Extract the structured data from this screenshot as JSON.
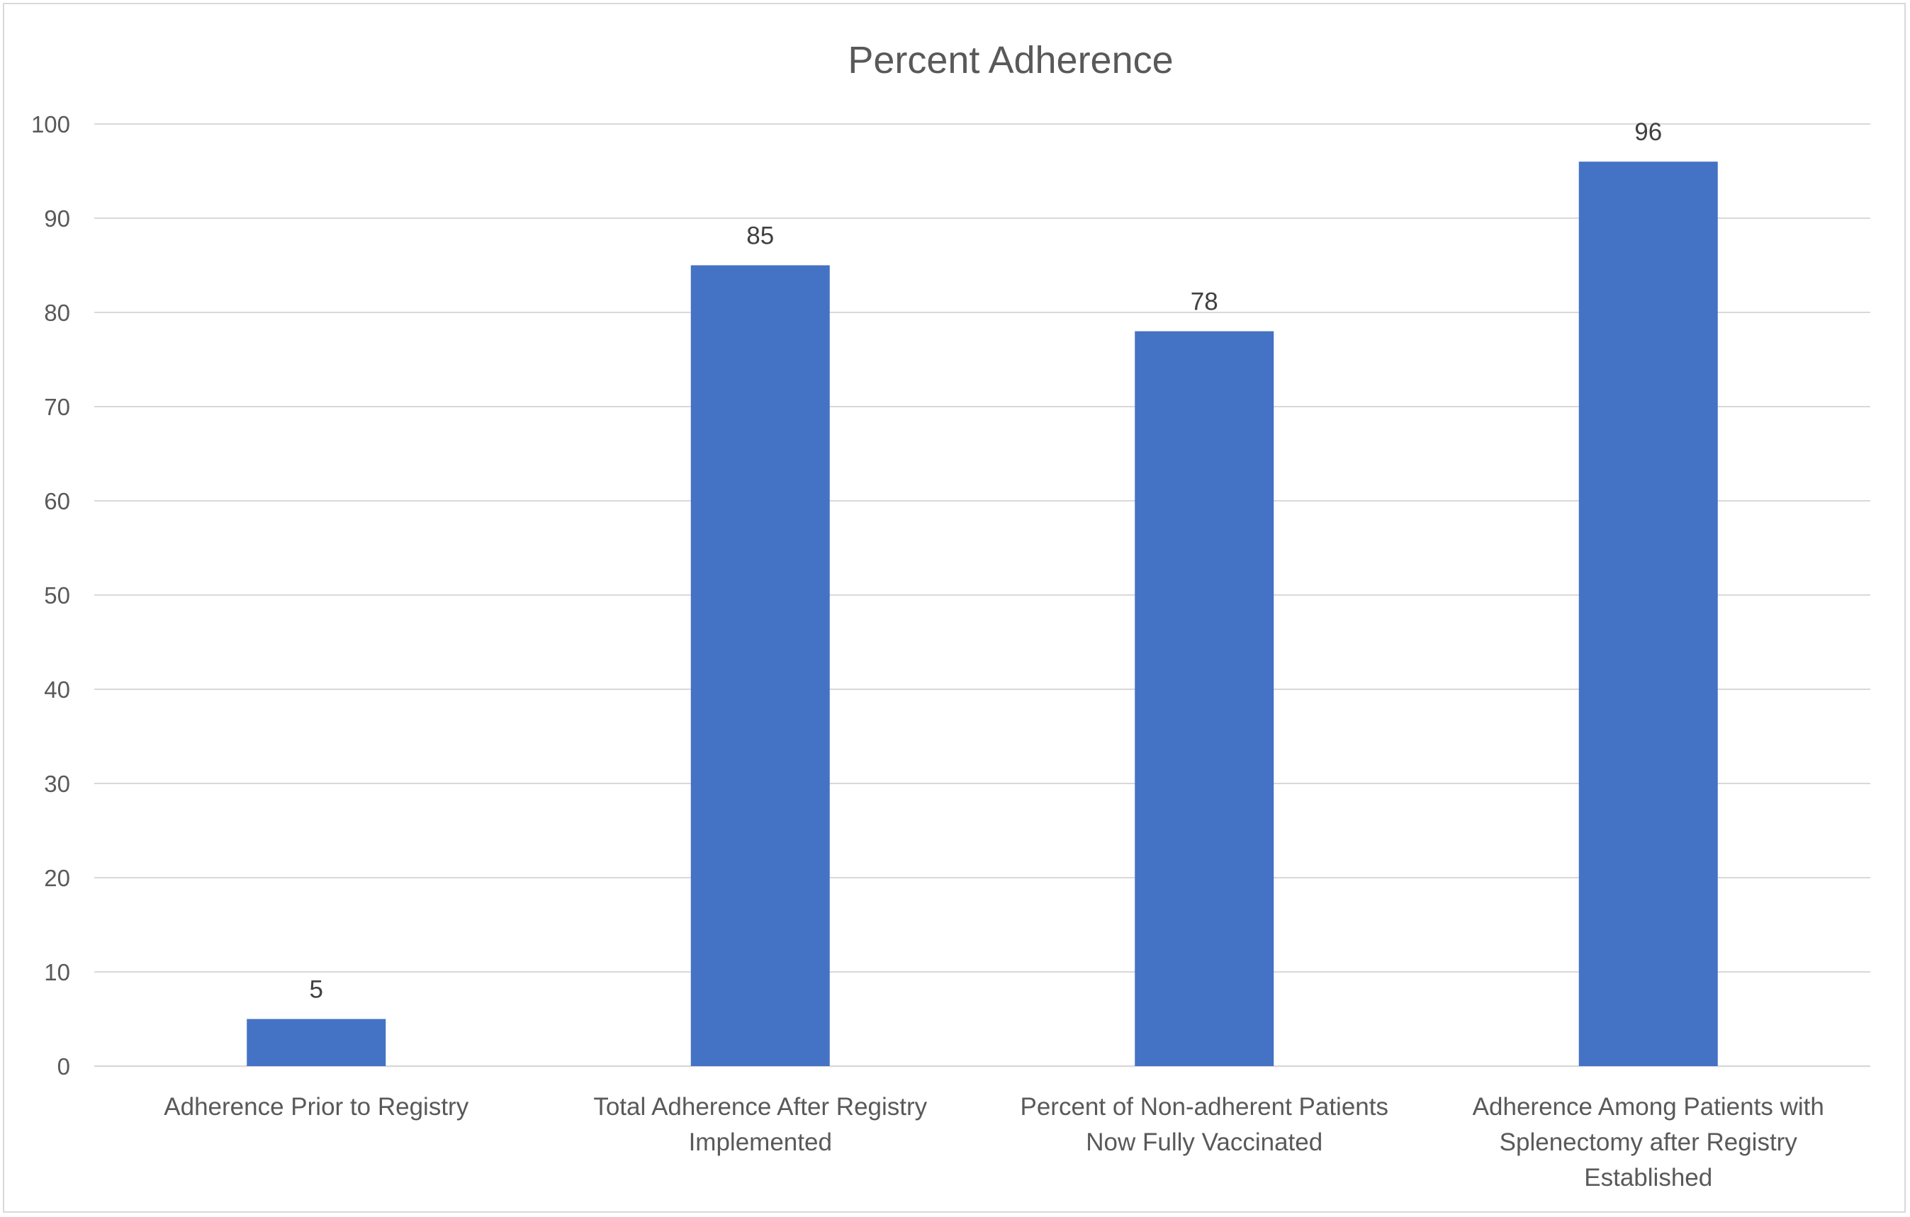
{
  "chart_data": {
    "type": "bar",
    "title": "Percent Adherence",
    "xlabel": "",
    "ylabel": "",
    "ylim": [
      0,
      100
    ],
    "yticks": [
      0,
      10,
      20,
      30,
      40,
      50,
      60,
      70,
      80,
      90,
      100
    ],
    "grid": true,
    "legend": "none",
    "bar_color": "#4472C4",
    "categories": [
      [
        "Adherence Prior to Registry"
      ],
      [
        "Total Adherence After Registry",
        "Implemented"
      ],
      [
        "Percent of Non-adherent Patients",
        "Now Fully Vaccinated"
      ],
      [
        "Adherence Among Patients with",
        "Splenectomy after Registry",
        "Established"
      ]
    ],
    "values": [
      5,
      85,
      78,
      96
    ],
    "data_labels": [
      "5",
      "85",
      "78",
      "96"
    ]
  }
}
